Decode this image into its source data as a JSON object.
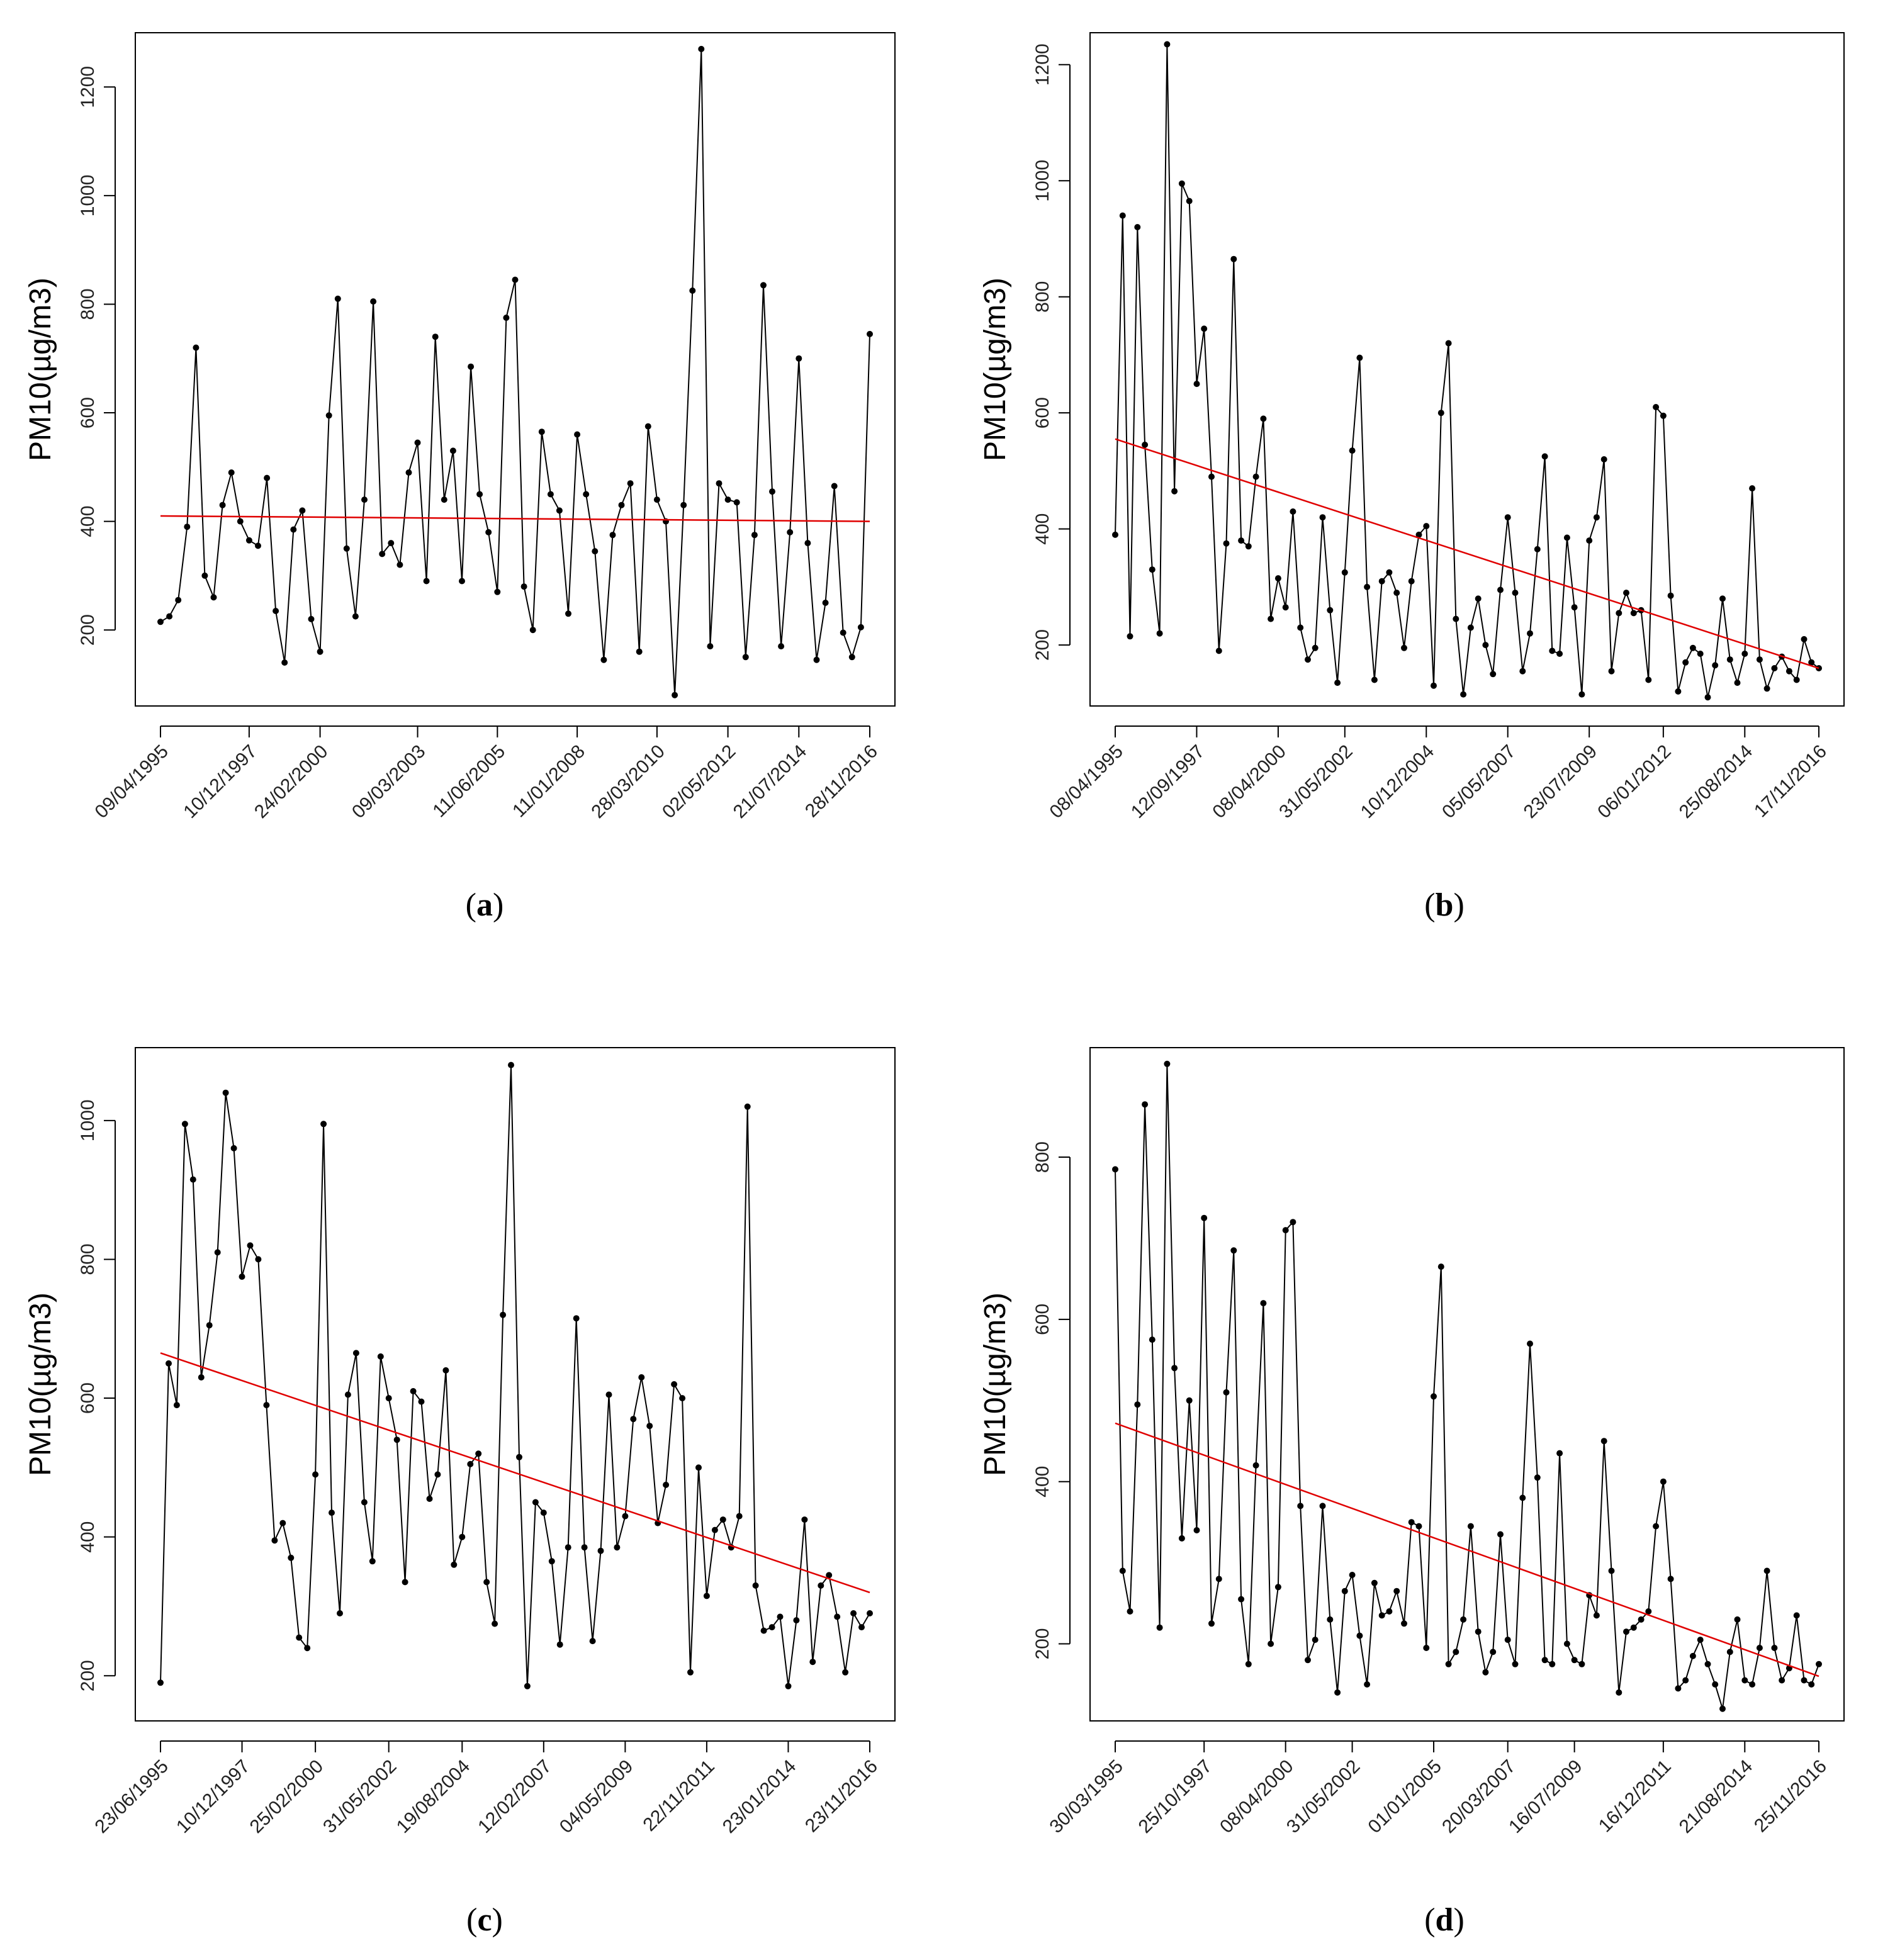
{
  "chart_data": [
    {
      "panel": "(a)",
      "caption_letter": "a",
      "type": "line",
      "ylabel": "PM10(µg/m3)",
      "ylim": [
        60,
        1300
      ],
      "yticks": [
        200,
        400,
        600,
        800,
        1000,
        1200
      ],
      "n": 81,
      "tick_labels": [
        "09/04/1995",
        "10/12/1997",
        "24/02/2000",
        "09/03/2003",
        "11/06/2005",
        "11/01/2008",
        "28/03/2010",
        "02/05/2012",
        "21/07/2014",
        "28/11/2016"
      ],
      "tick_index": [
        0,
        10,
        18,
        29,
        38,
        47,
        56,
        64,
        72,
        80
      ],
      "series": [
        {
          "name": "PM10",
          "values": [
            215,
            225,
            255,
            390,
            720,
            300,
            260,
            430,
            490,
            400,
            365,
            355,
            480,
            235,
            140,
            385,
            420,
            220,
            160,
            595,
            810,
            350,
            225,
            440,
            805,
            340,
            360,
            320,
            490,
            545,
            290,
            740,
            440,
            530,
            290,
            685,
            450,
            380,
            270,
            775,
            845,
            280,
            200,
            565,
            450,
            420,
            230,
            560,
            450,
            345,
            145,
            375,
            430,
            470,
            160,
            575,
            440,
            400,
            80,
            430,
            825,
            1270,
            170,
            470,
            440,
            435,
            150,
            375,
            835,
            455,
            170,
            380,
            700,
            360,
            145,
            250,
            465,
            195,
            150,
            205,
            745
          ]
        },
        {
          "name": "trend",
          "color": "#e00000",
          "from": 410,
          "to": 400
        }
      ]
    },
    {
      "panel": "(b)",
      "caption_letter": "b",
      "type": "line",
      "ylabel": "PM10(µg/m3)",
      "ylim": [
        95,
        1255
      ],
      "yticks": [
        200,
        400,
        600,
        800,
        1000,
        1200
      ],
      "n": 96,
      "tick_labels": [
        "08/04/1995",
        "12/09/1997",
        "08/04/2000",
        "31/05/2002",
        "10/12/2004",
        "05/05/2007",
        "23/07/2009",
        "06/01/2012",
        "25/08/2014",
        "17/11/2016"
      ],
      "tick_index": [
        0,
        11,
        22,
        31,
        42,
        53,
        64,
        74,
        85,
        95
      ],
      "series": [
        {
          "name": "PM10",
          "values": [
            390,
            940,
            215,
            920,
            545,
            330,
            220,
            1235,
            465,
            995,
            965,
            650,
            745,
            490,
            190,
            375,
            865,
            380,
            370,
            490,
            590,
            245,
            315,
            265,
            430,
            230,
            175,
            195,
            420,
            260,
            135,
            325,
            535,
            695,
            300,
            140,
            310,
            325,
            290,
            195,
            310,
            390,
            405,
            130,
            600,
            720,
            245,
            115,
            230,
            280,
            200,
            150,
            295,
            420,
            290,
            155,
            220,
            365,
            525,
            190,
            185,
            385,
            265,
            115,
            380,
            420,
            520,
            155,
            255,
            290,
            255,
            260,
            140,
            610,
            595,
            285,
            120,
            170,
            195,
            185,
            110,
            165,
            280,
            175,
            135,
            185,
            470,
            175,
            125,
            160,
            180,
            155,
            140,
            210,
            170,
            160
          ]
        },
        {
          "name": "trend",
          "color": "#e00000",
          "from": 555,
          "to": 160
        }
      ]
    },
    {
      "panel": "(c)",
      "caption_letter": "c",
      "type": "line",
      "ylabel": "PM10(µg/m3)",
      "ylim": [
        135,
        1105
      ],
      "yticks": [
        200,
        400,
        600,
        800,
        1000
      ],
      "n": 88,
      "tick_labels": [
        "23/06/1995",
        "10/12/1997",
        "25/02/2000",
        "31/05/2002",
        "19/08/2004",
        "12/02/2007",
        "04/05/2009",
        "22/11/2011",
        "23/01/2014",
        "23/11/2016"
      ],
      "tick_index": [
        0,
        10,
        19,
        28,
        37,
        47,
        57,
        67,
        77,
        87
      ],
      "series": [
        {
          "name": "PM10",
          "values": [
            190,
            650,
            590,
            995,
            915,
            630,
            705,
            810,
            1040,
            960,
            775,
            820,
            800,
            590,
            395,
            420,
            370,
            255,
            240,
            490,
            995,
            435,
            290,
            605,
            665,
            450,
            365,
            660,
            600,
            540,
            335,
            610,
            595,
            455,
            490,
            640,
            360,
            400,
            505,
            520,
            335,
            275,
            720,
            1080,
            515,
            185,
            450,
            435,
            365,
            245,
            385,
            715,
            385,
            250,
            380,
            605,
            385,
            430,
            570,
            630,
            560,
            420,
            475,
            620,
            600,
            205,
            500,
            315,
            410,
            425,
            385,
            430,
            1020,
            330,
            265,
            270,
            285,
            185,
            280,
            425,
            220,
            330,
            345,
            285,
            205,
            290,
            270,
            290
          ]
        },
        {
          "name": "trend",
          "color": "#e00000",
          "from": 665,
          "to": 320
        }
      ]
    },
    {
      "panel": "(d)",
      "caption_letter": "d",
      "type": "line",
      "ylabel": "PM10(µg/m3)",
      "ylim": [
        105,
        935
      ],
      "yticks": [
        200,
        400,
        600,
        800
      ],
      "n": 96,
      "tick_labels": [
        "30/03/1995",
        "25/10/1997",
        "08/04/2000",
        "31/05/2002",
        "01/01/2005",
        "20/03/2007",
        "16/07/2009",
        "16/12/2011",
        "21/08/2014",
        "25/11/2016"
      ],
      "tick_index": [
        0,
        12,
        23,
        32,
        43,
        53,
        62,
        74,
        85,
        95
      ],
      "series": [
        {
          "name": "PM10",
          "values": [
            785,
            290,
            240,
            495,
            865,
            575,
            220,
            915,
            540,
            330,
            500,
            340,
            725,
            225,
            280,
            510,
            685,
            255,
            175,
            420,
            620,
            200,
            270,
            710,
            720,
            370,
            180,
            205,
            370,
            230,
            140,
            265,
            285,
            210,
            150,
            275,
            235,
            240,
            265,
            225,
            350,
            345,
            195,
            505,
            665,
            175,
            190,
            230,
            345,
            215,
            165,
            190,
            335,
            205,
            175,
            380,
            570,
            405,
            180,
            175,
            435,
            200,
            180,
            175,
            260,
            235,
            450,
            290,
            140,
            215,
            220,
            230,
            240,
            345,
            400,
            280,
            145,
            155,
            185,
            205,
            175,
            150,
            120,
            190,
            230,
            155,
            150,
            195,
            290,
            195,
            155,
            170,
            235,
            155,
            150,
            175
          ]
        },
        {
          "name": "trend",
          "color": "#e00000",
          "from": 472,
          "to": 160
        }
      ]
    }
  ]
}
